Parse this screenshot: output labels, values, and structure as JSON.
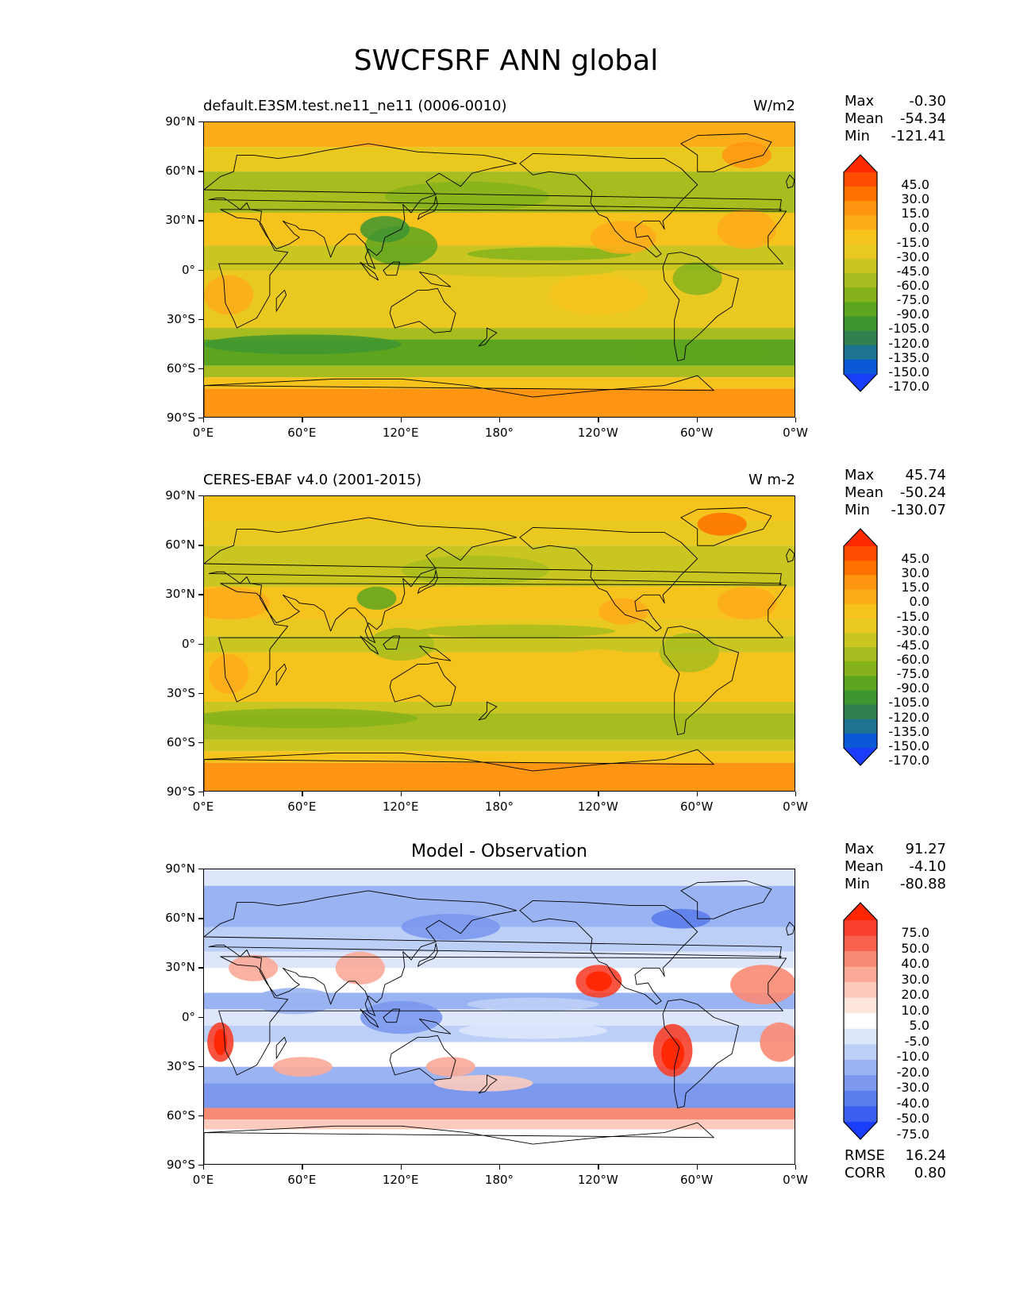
{
  "figure": {
    "title": "SWCFSRF ANN global"
  },
  "axes": {
    "lat_ticks": [
      "90°N",
      "60°N",
      "30°N",
      "0°",
      "30°S",
      "60°S",
      "90°S"
    ],
    "lon_ticks": [
      "0°E",
      "60°E",
      "120°E",
      "180°",
      "120°W",
      "60°W",
      "0°W"
    ]
  },
  "panels": [
    {
      "id": "model",
      "title": "default.E3SM.test.ne11_ne11 (0006-0010)",
      "units": "W/m2",
      "stats": {
        "max_label": "Max",
        "max": "-0.30",
        "mean_label": "Mean",
        "mean": "-54.34",
        "min_label": "Min",
        "min": "-121.41"
      },
      "colorbar": {
        "levels": [
          "45.0",
          "30.0",
          "15.0",
          "0.0",
          "-15.0",
          "-30.0",
          "-45.0",
          "-60.0",
          "-75.0",
          "-90.0",
          "-105.0",
          "-120.0",
          "-135.0",
          "-150.0",
          "-170.0"
        ],
        "colors": [
          "#ff2a00",
          "#ff4c00",
          "#ff7200",
          "#ff9510",
          "#fdac1a",
          "#f6c21c",
          "#e9c820",
          "#c9c621",
          "#a7bd1f",
          "#86b31c",
          "#5ea51f",
          "#3e9531",
          "#318050",
          "#1c7490",
          "#0a5ad8",
          "#1a3dfa"
        ]
      }
    },
    {
      "id": "obs",
      "title": "CERES-EBAF v4.0 (2001-2015)",
      "units": "W m-2",
      "stats": {
        "max_label": "Max",
        "max": "45.74",
        "mean_label": "Mean",
        "mean": "-50.24",
        "min_label": "Min",
        "min": "-130.07"
      },
      "colorbar": {
        "levels": [
          "45.0",
          "30.0",
          "15.0",
          "0.0",
          "-15.0",
          "-30.0",
          "-45.0",
          "-60.0",
          "-75.0",
          "-90.0",
          "-105.0",
          "-120.0",
          "-135.0",
          "-150.0",
          "-170.0"
        ],
        "colors": [
          "#ff2a00",
          "#ff4c00",
          "#ff7200",
          "#ff9510",
          "#fdac1a",
          "#f6c21c",
          "#e9c820",
          "#c9c621",
          "#a7bd1f",
          "#86b31c",
          "#5ea51f",
          "#3e9531",
          "#318050",
          "#1c7490",
          "#0a5ad8",
          "#1a3dfa"
        ]
      }
    },
    {
      "id": "diff",
      "title": "Model - Observation",
      "units": "",
      "stats": {
        "max_label": "Max",
        "max": "91.27",
        "mean_label": "Mean",
        "mean": "-4.10",
        "min_label": "Min",
        "min": "-80.88"
      },
      "colorbar": {
        "levels": [
          "75.0",
          "50.0",
          "40.0",
          "30.0",
          "20.0",
          "10.0",
          "5.0",
          "-5.0",
          "-10.0",
          "-20.0",
          "-30.0",
          "-40.0",
          "-50.0",
          "-75.0"
        ],
        "colors": [
          "#ff2500",
          "#f8402c",
          "#f8614d",
          "#f98a74",
          "#fbaa98",
          "#fdcbbe",
          "#fee5de",
          "#ffffff",
          "#dde6fb",
          "#bccff7",
          "#9ab3f2",
          "#7b98ee",
          "#5b7dea",
          "#3a5ff0",
          "#1a3dfa"
        ]
      },
      "metrics": {
        "rmse_label": "RMSE",
        "rmse": "16.24",
        "corr_label": "CORR",
        "corr": "0.80"
      }
    }
  ]
}
